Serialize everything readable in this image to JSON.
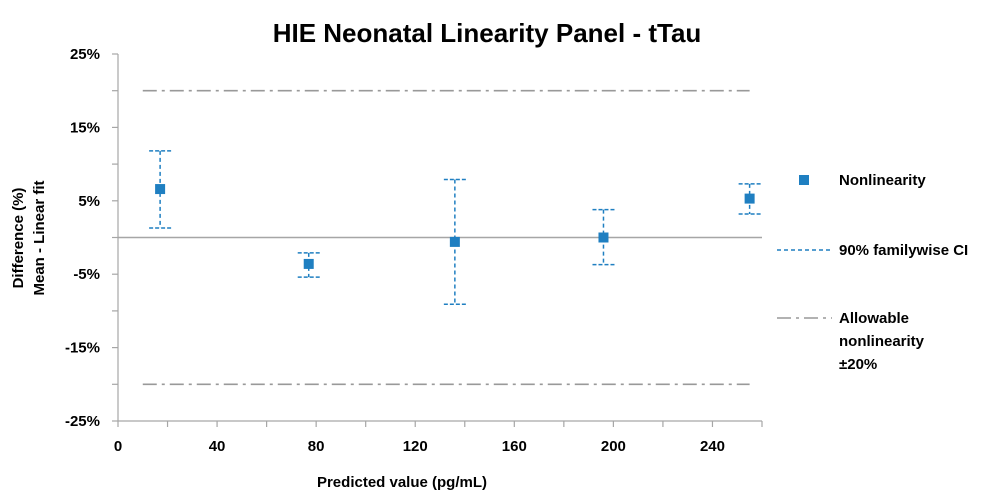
{
  "chart_data": {
    "type": "scatter",
    "title": "HIE Neonatal Linearity Panel - tTau",
    "xlabel": "Predicted value (pg/mL)",
    "ylabel_lines": [
      "Difference (%)",
      "Mean - Linear fit"
    ],
    "xlim": [
      0,
      260
    ],
    "ylim": [
      -25,
      25
    ],
    "x_ticks": [
      0,
      40,
      80,
      120,
      160,
      200,
      240
    ],
    "y_ticks": [
      25,
      15,
      5,
      -5,
      -15,
      -25
    ],
    "y_tick_labels": [
      "25%",
      "15%",
      "5%",
      "-5%",
      "-15%",
      "-25%"
    ],
    "grid": false,
    "reference_line": 0,
    "allowable_limits": [
      20,
      -20
    ],
    "legend_position": "right",
    "series": [
      {
        "name": "Nonlinearity",
        "color": "#1f7fc1",
        "marker": "square",
        "points": [
          {
            "x": 17,
            "y": 6.6,
            "ci_low": 1.3,
            "ci_high": 11.8
          },
          {
            "x": 77,
            "y": -3.6,
            "ci_low": -5.4,
            "ci_high": -2.1
          },
          {
            "x": 136,
            "y": -0.6,
            "ci_low": -9.1,
            "ci_high": 7.9
          },
          {
            "x": 196,
            "y": 0.0,
            "ci_low": -3.7,
            "ci_high": 3.8
          },
          {
            "x": 255,
            "y": 5.3,
            "ci_low": 3.2,
            "ci_high": 7.3
          }
        ]
      }
    ],
    "legend": [
      {
        "key": "nonlinearity",
        "label_lines": [
          "Nonlinearity"
        ],
        "style": "marker",
        "color": "#1f7fc1"
      },
      {
        "key": "ci",
        "label_lines": [
          "90% familywise CI"
        ],
        "style": "dashed",
        "color": "#1f7fc1"
      },
      {
        "key": "allowable",
        "label_lines": [
          "Allowable",
          "nonlinearity",
          "±20%"
        ],
        "style": "dashdot",
        "color": "#999999"
      }
    ]
  }
}
